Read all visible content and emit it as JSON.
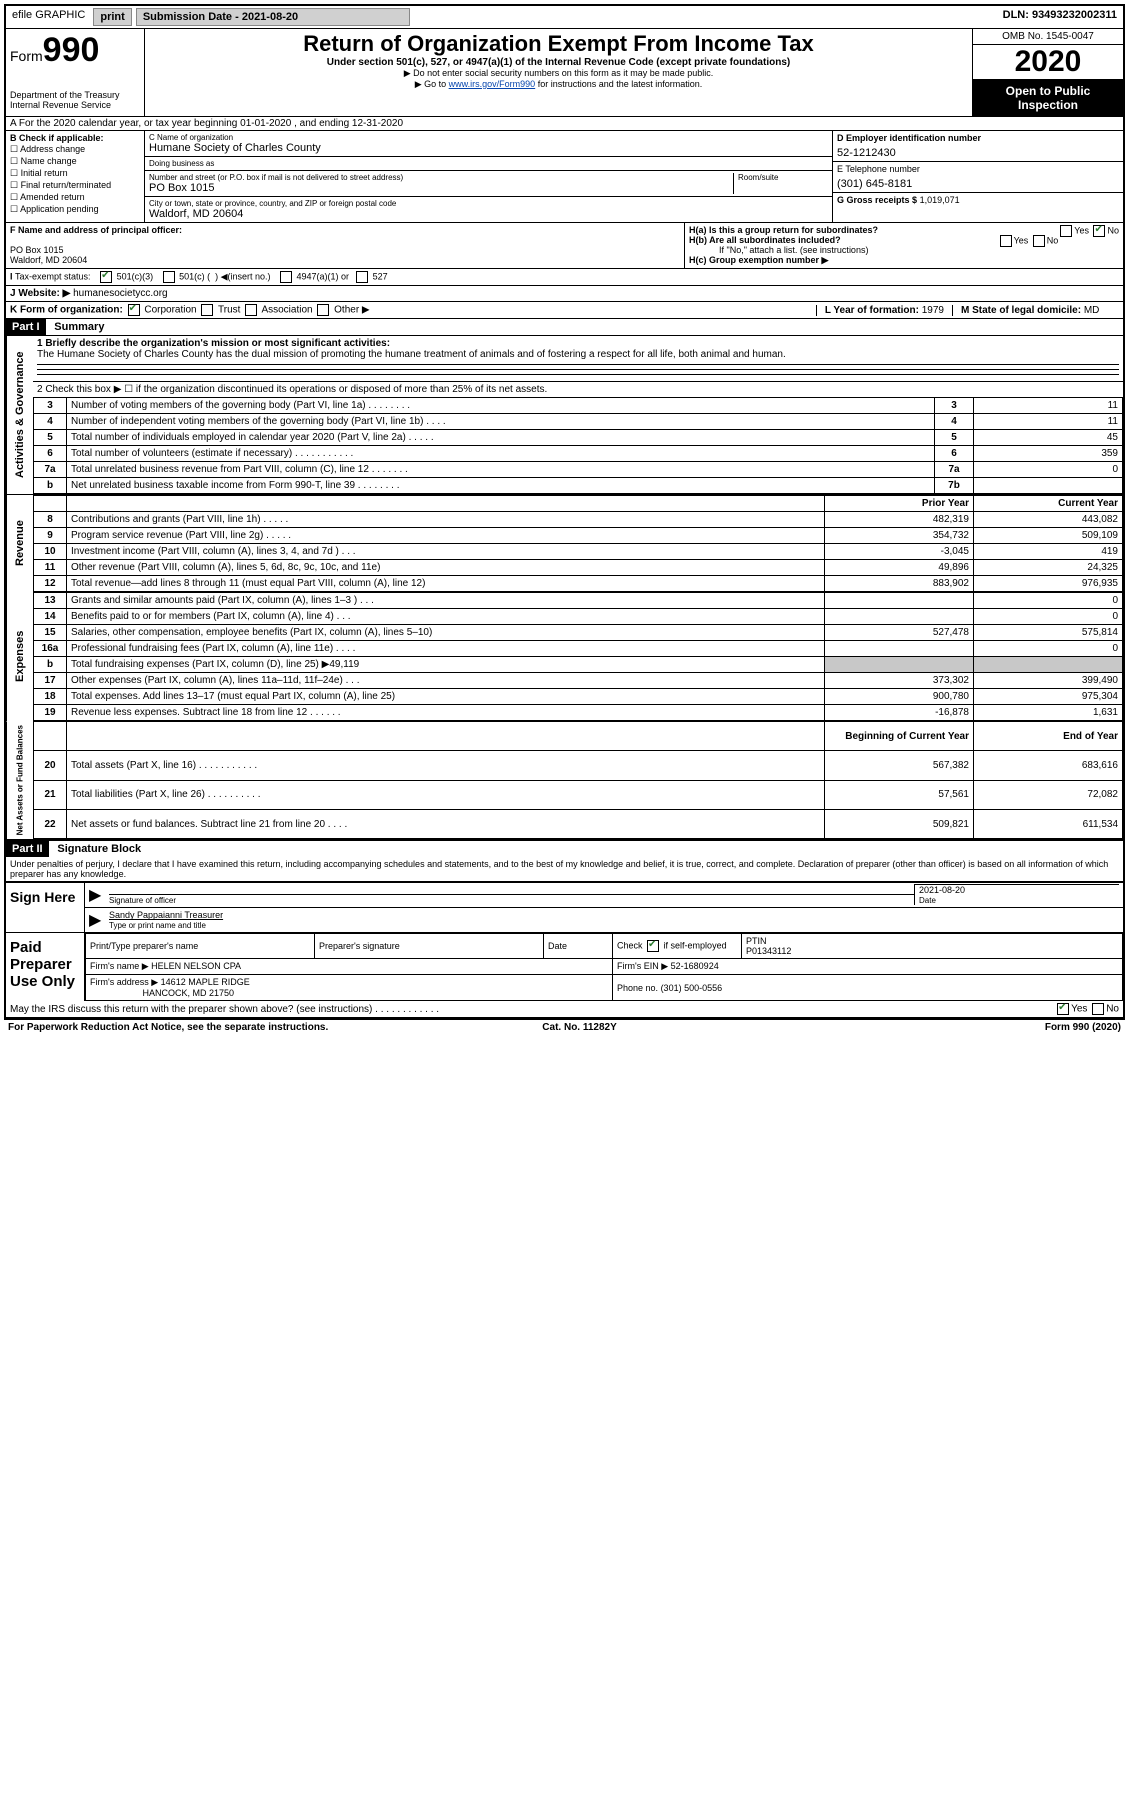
{
  "topbar": {
    "efile_label": "efile GRAPHIC",
    "print": "print",
    "submission_label": "Submission Date - 2021-08-20",
    "dln": "DLN: 93493232002311"
  },
  "header": {
    "form_prefix": "Form",
    "form_number": "990",
    "dept": "Department of the Treasury\nInternal Revenue Service",
    "title": "Return of Organization Exempt From Income Tax",
    "sub1": "Under section 501(c), 527, or 4947(a)(1) of the Internal Revenue Code (except private foundations)",
    "sub2": "▶ Do not enter social security numbers on this form as it may be made public.",
    "sub3_pre": "▶ Go to ",
    "sub3_link": "www.irs.gov/Form990",
    "sub3_post": " for instructions and the latest information.",
    "omb": "OMB No. 1545-0047",
    "year": "2020",
    "otp": "Open to Public Inspection"
  },
  "line_a": "A  For the 2020 calendar year, or tax year beginning 01-01-2020    , and ending 12-31-2020",
  "block_b": {
    "label": "B Check if applicable:",
    "opts": [
      "Address change",
      "Name change",
      "Initial return",
      "Final return/terminated",
      "Amended return",
      "Application pending"
    ]
  },
  "block_c": {
    "name_label": "C Name of organization",
    "name": "Humane Society of Charles County",
    "dba_label": "Doing business as",
    "dba": "",
    "street_label": "Number and street (or P.O. box if mail is not delivered to street address)",
    "room_label": "Room/suite",
    "street": "PO Box 1015",
    "city_label": "City or town, state or province, country, and ZIP or foreign postal code",
    "city": "Waldorf, MD  20604"
  },
  "block_d": {
    "label": "D Employer identification number",
    "value": "52-1212430"
  },
  "block_e": {
    "label": "E Telephone number",
    "value": "(301) 645-8181"
  },
  "block_g": {
    "label": "G Gross receipts $",
    "value": "1,019,071"
  },
  "block_f": {
    "label": "F  Name and address of principal officer:",
    "line1": "PO Box 1015",
    "line2": "Waldorf, MD  20604"
  },
  "block_h": {
    "ha": "H(a)  Is this a group return for subordinates?",
    "ha_no": true,
    "hb": "H(b)  Are all subordinates included?",
    "hb_note": "If \"No,\" attach a list. (see instructions)",
    "hc": "H(c)  Group exemption number ▶"
  },
  "tax_exempt": {
    "label": "Tax-exempt status:",
    "c501c3": true,
    "opts_text": "501(c)(3)     501(c) (  ) ◀(insert no.)     4947(a)(1) or     527"
  },
  "website": {
    "label": "J  Website: ▶",
    "value": "humanesocietycc.org"
  },
  "line_k": {
    "label": "K Form of organization:",
    "corp": true,
    "opts": [
      "Corporation",
      "Trust",
      "Association",
      "Other ▶"
    ]
  },
  "line_l": {
    "label": "L Year of formation:",
    "value": "1979"
  },
  "line_m": {
    "label": "M State of legal domicile:",
    "value": "MD"
  },
  "part1": {
    "hdr": "Part I",
    "title": "Summary",
    "q1_label": "1  Briefly describe the organization's mission or most significant activities:",
    "q1_text": "The Humane Society of Charles County has the dual mission of promoting the humane treatment of animals and of fostering a respect for all life, both animal and human.",
    "q2": "2    Check this box ▶ ☐  if the organization discontinued its operations or disposed of more than 25% of its net assets.",
    "sidelabels": {
      "ag": "Activities & Governance",
      "rev": "Revenue",
      "exp": "Expenses",
      "na": "Net Assets or Fund Balances"
    },
    "rows_gov": [
      {
        "n": "3",
        "d": "Number of voting members of the governing body (Part VI, line 1a)   .    .    .    .    .    .    .    .",
        "b": "3",
        "v": "11"
      },
      {
        "n": "4",
        "d": "Number of independent voting members of the governing body (Part VI, line 1b)  .    .    .    .",
        "b": "4",
        "v": "11"
      },
      {
        "n": "5",
        "d": "Total number of individuals employed in calendar year 2020 (Part V, line 2a)  .    .    .    .    .",
        "b": "5",
        "v": "45"
      },
      {
        "n": "6",
        "d": "Total number of volunteers (estimate if necessary)   .    .    .    .    .    .    .    .    .    .    .",
        "b": "6",
        "v": "359"
      },
      {
        "n": "7a",
        "d": "Total unrelated business revenue from Part VIII, column (C), line 12   .    .    .    .    .    .    .",
        "b": "7a",
        "v": "0"
      },
      {
        "n": "b",
        "d": "Net unrelated business taxable income from Form 990-T, line 39   .    .    .    .    .    .    .    .",
        "b": "7b",
        "v": ""
      }
    ],
    "col_prior": "Prior Year",
    "col_current": "Current Year",
    "rows_rev": [
      {
        "n": "8",
        "d": "Contributions and grants (Part VIII, line 1h)   .    .    .    .    .",
        "p": "482,319",
        "c": "443,082"
      },
      {
        "n": "9",
        "d": "Program service revenue (Part VIII, line 2g)   .    .    .    .    .",
        "p": "354,732",
        "c": "509,109"
      },
      {
        "n": "10",
        "d": "Investment income (Part VIII, column (A), lines 3, 4, and 7d )   .    .    .",
        "p": "-3,045",
        "c": "419"
      },
      {
        "n": "11",
        "d": "Other revenue (Part VIII, column (A), lines 5, 6d, 8c, 9c, 10c, and 11e)",
        "p": "49,896",
        "c": "24,325"
      },
      {
        "n": "12",
        "d": "Total revenue—add lines 8 through 11 (must equal Part VIII, column (A), line 12)",
        "p": "883,902",
        "c": "976,935"
      }
    ],
    "rows_exp": [
      {
        "n": "13",
        "d": "Grants and similar amounts paid (Part IX, column (A), lines 1–3 )  .    .    .",
        "p": "",
        "c": "0"
      },
      {
        "n": "14",
        "d": "Benefits paid to or for members (Part IX, column (A), line 4)  .    .    .",
        "p": "",
        "c": "0"
      },
      {
        "n": "15",
        "d": "Salaries, other compensation, employee benefits (Part IX, column (A), lines 5–10)",
        "p": "527,478",
        "c": "575,814"
      },
      {
        "n": "16a",
        "d": "Professional fundraising fees (Part IX, column (A), line 11e)  .    .    .    .",
        "p": "",
        "c": "0"
      },
      {
        "n": "b",
        "d": "Total fundraising expenses (Part IX, column (D), line 25) ▶49,119",
        "p": "shade",
        "c": "shade"
      },
      {
        "n": "17",
        "d": "Other expenses (Part IX, column (A), lines 11a–11d, 11f–24e)  .    .    .",
        "p": "373,302",
        "c": "399,490"
      },
      {
        "n": "18",
        "d": "Total expenses. Add lines 13–17 (must equal Part IX, column (A), line 25)",
        "p": "900,780",
        "c": "975,304"
      },
      {
        "n": "19",
        "d": "Revenue less expenses. Subtract line 18 from line 12  .    .    .    .    .    .",
        "p": "-16,878",
        "c": "1,631"
      }
    ],
    "col_boy": "Beginning of Current Year",
    "col_eoy": "End of Year",
    "rows_na": [
      {
        "n": "20",
        "d": "Total assets (Part X, line 16)  .    .    .    .    .    .    .    .    .    .    .",
        "p": "567,382",
        "c": "683,616"
      },
      {
        "n": "21",
        "d": "Total liabilities (Part X, line 26)  .    .    .    .    .    .    .    .    .    .",
        "p": "57,561",
        "c": "72,082"
      },
      {
        "n": "22",
        "d": "Net assets or fund balances. Subtract line 21 from line 20  .    .    .    .",
        "p": "509,821",
        "c": "611,534"
      }
    ]
  },
  "part2": {
    "hdr": "Part II",
    "title": "Signature Block",
    "penalty": "Under penalties of perjury, I declare that I have examined this return, including accompanying schedules and statements, and to the best of my knowledge and belief, it is true, correct, and complete. Declaration of preparer (other than officer) is based on all information of which preparer has any knowledge."
  },
  "sign_here": {
    "label": "Sign Here",
    "sig_officer_lbl": "Signature of officer",
    "date_lbl": "Date",
    "date": "2021-08-20",
    "name": "Sandy Pappaianni  Treasurer",
    "name_lbl": "Type or print name and title"
  },
  "paid": {
    "label": "Paid Preparer Use Only",
    "h_name": "Print/Type preparer's name",
    "h_sig": "Preparer's signature",
    "h_date": "Date",
    "check_lbl": "Check",
    "check_if": "if self-employed",
    "ptin_lbl": "PTIN",
    "ptin": "P01343112",
    "firm_name_lbl": "Firm's name    ▶",
    "firm_name": "HELEN NELSON CPA",
    "firm_ein_lbl": "Firm's EIN ▶",
    "firm_ein": "52-1680924",
    "firm_addr_lbl": "Firm's address ▶",
    "firm_addr1": "14612 MAPLE RIDGE",
    "firm_addr2": "HANCOCK, MD  21750",
    "phone_lbl": "Phone no.",
    "phone": "(301) 500-0556",
    "discuss": "May the IRS discuss this return with the preparer shown above? (see instructions)   .    .    .    .    .    .    .    .    .    .    .    .",
    "discuss_yes": true
  },
  "footer": {
    "left": "For Paperwork Reduction Act Notice, see the separate instructions.",
    "mid": "Cat. No. 11282Y",
    "right": "Form 990 (2020)"
  },
  "colors": {
    "link": "#0645ad",
    "check": "#2e7d32",
    "shade": "#c8c8c8"
  }
}
